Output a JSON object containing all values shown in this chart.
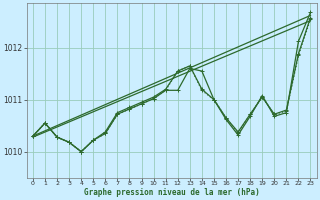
{
  "xlabel": "Graphe pression niveau de la mer (hPa)",
  "background_color": "#cceeff",
  "grid_color": "#99ccbb",
  "line_color": "#2d6a2d",
  "xlim": [
    -0.5,
    23.5
  ],
  "ylim": [
    1009.5,
    1012.85
  ],
  "yticks": [
    1010,
    1011,
    1012
  ],
  "xticks": [
    0,
    1,
    2,
    3,
    4,
    5,
    6,
    7,
    8,
    9,
    10,
    11,
    12,
    13,
    14,
    15,
    16,
    17,
    18,
    19,
    20,
    21,
    22,
    23
  ],
  "line1_x": [
    0,
    1,
    2,
    3,
    4,
    5,
    6,
    7,
    8,
    9,
    10,
    11,
    12,
    13,
    14,
    15,
    16,
    17,
    18,
    19,
    20,
    21,
    22,
    23
  ],
  "line1_y": [
    1010.3,
    1010.55,
    1010.28,
    1010.18,
    1010.0,
    1010.22,
    1010.35,
    1010.72,
    1010.82,
    1010.92,
    1011.02,
    1011.18,
    1011.18,
    1011.6,
    1011.55,
    1011.0,
    1010.65,
    1010.38,
    1010.72,
    1011.05,
    1010.72,
    1010.8,
    1011.88,
    1012.58
  ],
  "line2_x": [
    0,
    1,
    2,
    3,
    4,
    5,
    6,
    7,
    8,
    9,
    10,
    11,
    12,
    13,
    14,
    15,
    16,
    17,
    18,
    19,
    20,
    21,
    22,
    23
  ],
  "line2_y": [
    1010.3,
    1010.55,
    1010.28,
    1010.18,
    1010.0,
    1010.22,
    1010.38,
    1010.75,
    1010.85,
    1010.95,
    1011.05,
    1011.2,
    1011.55,
    1011.65,
    1011.2,
    1011.0,
    1010.62,
    1010.32,
    1010.68,
    1011.08,
    1010.68,
    1010.75,
    1012.12,
    1012.68
  ],
  "line3_x": [
    0,
    23
  ],
  "line3_y": [
    1010.3,
    1012.62
  ],
  "line4_x": [
    0,
    23
  ],
  "line4_y": [
    1010.28,
    1012.52
  ],
  "dotline_x": [
    0,
    1,
    2,
    3,
    4,
    5,
    6,
    7,
    8,
    9,
    10,
    11,
    12,
    13,
    14,
    15,
    16,
    17,
    18,
    19,
    20,
    21,
    22,
    23
  ],
  "dotline_y": [
    1010.3,
    1010.55,
    1010.28,
    1010.18,
    1010.0,
    1010.22,
    1010.35,
    1010.72,
    1010.82,
    1010.92,
    1011.02,
    1011.18,
    1011.55,
    1011.65,
    1011.18,
    1011.0,
    1010.65,
    1010.35,
    1010.72,
    1011.05,
    1010.72,
    1010.78,
    1011.85,
    1012.55
  ]
}
